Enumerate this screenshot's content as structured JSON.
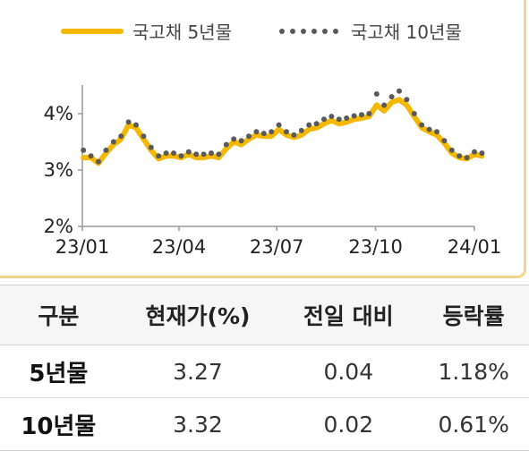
{
  "legend": {
    "series1": "국고채 5년물",
    "series2": "국고채 10년물"
  },
  "chart_data": {
    "type": "line",
    "x_ticks": [
      "23/01",
      "23/04",
      "23/07",
      "23/10",
      "24/01"
    ],
    "y_ticks": [
      "2%",
      "3%",
      "4%"
    ],
    "ylim": [
      2,
      4.5
    ],
    "xlim": [
      "2023-01-01",
      "2024-01-01"
    ],
    "series": [
      {
        "name": "국고채 5년물",
        "style": "line",
        "color": "#f5b800",
        "points": [
          [
            "2023-01-02",
            3.22
          ],
          [
            "2023-01-09",
            3.22
          ],
          [
            "2023-01-16",
            3.12
          ],
          [
            "2023-01-23",
            3.3
          ],
          [
            "2023-01-30",
            3.45
          ],
          [
            "2023-02-06",
            3.55
          ],
          [
            "2023-02-13",
            3.8
          ],
          [
            "2023-02-20",
            3.75
          ],
          [
            "2023-02-27",
            3.55
          ],
          [
            "2023-03-06",
            3.35
          ],
          [
            "2023-03-13",
            3.2
          ],
          [
            "2023-03-20",
            3.25
          ],
          [
            "2023-03-27",
            3.25
          ],
          [
            "2023-04-03",
            3.22
          ],
          [
            "2023-04-10",
            3.28
          ],
          [
            "2023-04-17",
            3.22
          ],
          [
            "2023-04-24",
            3.22
          ],
          [
            "2023-05-01",
            3.25
          ],
          [
            "2023-05-08",
            3.22
          ],
          [
            "2023-05-15",
            3.38
          ],
          [
            "2023-05-22",
            3.5
          ],
          [
            "2023-05-29",
            3.45
          ],
          [
            "2023-06-05",
            3.55
          ],
          [
            "2023-06-12",
            3.62
          ],
          [
            "2023-06-19",
            3.6
          ],
          [
            "2023-06-26",
            3.6
          ],
          [
            "2023-07-03",
            3.72
          ],
          [
            "2023-07-10",
            3.62
          ],
          [
            "2023-07-17",
            3.58
          ],
          [
            "2023-07-24",
            3.62
          ],
          [
            "2023-07-31",
            3.72
          ],
          [
            "2023-08-07",
            3.75
          ],
          [
            "2023-08-14",
            3.82
          ],
          [
            "2023-08-21",
            3.88
          ],
          [
            "2023-08-28",
            3.82
          ],
          [
            "2023-09-04",
            3.85
          ],
          [
            "2023-09-11",
            3.9
          ],
          [
            "2023-09-18",
            3.92
          ],
          [
            "2023-09-25",
            3.95
          ],
          [
            "2023-10-02",
            4.15
          ],
          [
            "2023-10-09",
            4.05
          ],
          [
            "2023-10-16",
            4.2
          ],
          [
            "2023-10-23",
            4.25
          ],
          [
            "2023-10-30",
            4.15
          ],
          [
            "2023-11-06",
            3.95
          ],
          [
            "2023-11-13",
            3.75
          ],
          [
            "2023-11-20",
            3.68
          ],
          [
            "2023-11-27",
            3.62
          ],
          [
            "2023-12-04",
            3.48
          ],
          [
            "2023-12-11",
            3.3
          ],
          [
            "2023-12-18",
            3.22
          ],
          [
            "2023-12-25",
            3.2
          ],
          [
            "2024-01-01",
            3.28
          ],
          [
            "2024-01-08",
            3.25
          ]
        ]
      },
      {
        "name": "국고채 10년물",
        "style": "dots",
        "color": "#5a5a5a",
        "points": [
          [
            "2023-01-02",
            3.35
          ],
          [
            "2023-01-09",
            3.25
          ],
          [
            "2023-01-16",
            3.15
          ],
          [
            "2023-01-23",
            3.35
          ],
          [
            "2023-01-30",
            3.5
          ],
          [
            "2023-02-06",
            3.6
          ],
          [
            "2023-02-13",
            3.85
          ],
          [
            "2023-02-20",
            3.8
          ],
          [
            "2023-02-27",
            3.6
          ],
          [
            "2023-03-06",
            3.4
          ],
          [
            "2023-03-13",
            3.25
          ],
          [
            "2023-03-20",
            3.3
          ],
          [
            "2023-03-27",
            3.3
          ],
          [
            "2023-04-03",
            3.25
          ],
          [
            "2023-04-10",
            3.32
          ],
          [
            "2023-04-17",
            3.28
          ],
          [
            "2023-04-24",
            3.28
          ],
          [
            "2023-05-01",
            3.3
          ],
          [
            "2023-05-08",
            3.28
          ],
          [
            "2023-05-15",
            3.45
          ],
          [
            "2023-05-22",
            3.55
          ],
          [
            "2023-05-29",
            3.52
          ],
          [
            "2023-06-05",
            3.6
          ],
          [
            "2023-06-12",
            3.68
          ],
          [
            "2023-06-19",
            3.65
          ],
          [
            "2023-06-26",
            3.68
          ],
          [
            "2023-07-03",
            3.8
          ],
          [
            "2023-07-10",
            3.68
          ],
          [
            "2023-07-17",
            3.62
          ],
          [
            "2023-07-24",
            3.7
          ],
          [
            "2023-07-31",
            3.8
          ],
          [
            "2023-08-07",
            3.82
          ],
          [
            "2023-08-14",
            3.9
          ],
          [
            "2023-08-21",
            3.95
          ],
          [
            "2023-08-28",
            3.9
          ],
          [
            "2023-09-04",
            3.92
          ],
          [
            "2023-09-11",
            3.96
          ],
          [
            "2023-09-18",
            3.98
          ],
          [
            "2023-09-25",
            4.0
          ],
          [
            "2023-10-02",
            4.35
          ],
          [
            "2023-10-09",
            4.15
          ],
          [
            "2023-10-16",
            4.3
          ],
          [
            "2023-10-23",
            4.4
          ],
          [
            "2023-10-30",
            4.25
          ],
          [
            "2023-11-06",
            4.0
          ],
          [
            "2023-11-13",
            3.8
          ],
          [
            "2023-11-20",
            3.72
          ],
          [
            "2023-11-27",
            3.68
          ],
          [
            "2023-12-04",
            3.52
          ],
          [
            "2023-12-11",
            3.35
          ],
          [
            "2023-12-18",
            3.25
          ],
          [
            "2023-12-25",
            3.22
          ],
          [
            "2024-01-01",
            3.32
          ],
          [
            "2024-01-08",
            3.3
          ]
        ]
      }
    ]
  },
  "table": {
    "headers": [
      "구분",
      "현재가(%)",
      "전일 대비",
      "등락률"
    ],
    "rows": [
      [
        "5년물",
        "3.27",
        "0.04",
        "1.18%"
      ],
      [
        "10년물",
        "3.32",
        "0.02",
        "0.61%"
      ]
    ]
  }
}
